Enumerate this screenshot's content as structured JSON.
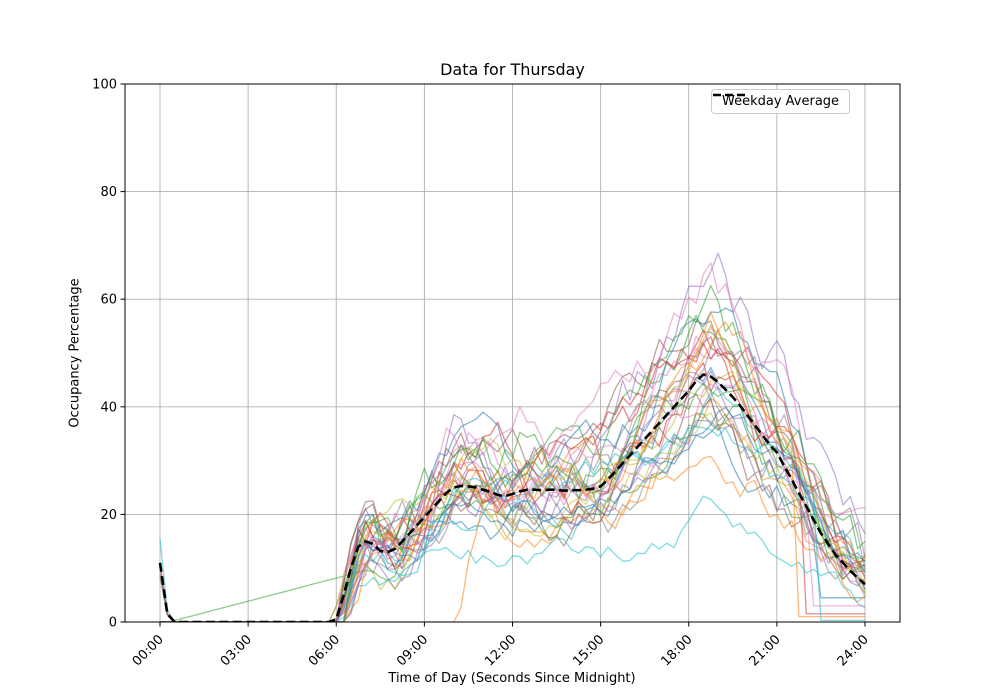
{
  "chart_data": {
    "type": "line",
    "title": "Data for Thursday",
    "xlabel": "Time of Day (Seconds Since Midnight)",
    "ylabel": "Occupancy Percentage",
    "ylim": [
      0,
      100
    ],
    "xlim_hours": [
      0,
      24
    ],
    "grid": true,
    "x_tick_hours": [
      0,
      3,
      6,
      9,
      12,
      15,
      18,
      21,
      24
    ],
    "x_tick_labels": [
      "00:00",
      "03:00",
      "06:00",
      "09:00",
      "12:00",
      "15:00",
      "18:00",
      "21:00",
      "24:00"
    ],
    "y_ticks": [
      0,
      20,
      40,
      60,
      80,
      100
    ],
    "legend": {
      "label": "Weekday Average",
      "position": "upper right"
    },
    "style": {
      "grid_color": "#b0b0b0",
      "spine_color": "#000000",
      "tick_font_px": 13,
      "average_color": "#000000",
      "average_width": 2.6,
      "average_dash": "9 4.4",
      "line_width": 1.3,
      "line_opacity": 0.55
    },
    "average": {
      "name": "Weekday Average",
      "x_start_hour": 0,
      "x_step_hours": 0.25,
      "values": [
        11,
        1.5,
        0,
        0,
        0,
        0,
        0,
        0,
        0,
        0,
        0,
        0,
        0,
        0,
        0,
        0,
        0,
        0,
        0,
        0,
        0,
        0,
        0,
        0,
        0.5,
        5,
        10,
        14,
        15,
        14.5,
        13.2,
        13,
        13.6,
        15,
        16.5,
        18,
        19.5,
        21,
        22.5,
        24,
        25,
        25.3,
        25.2,
        25,
        24.6,
        24.2,
        23.6,
        23.4,
        23.8,
        24.3,
        24.6,
        24.6,
        24.5,
        24.6,
        24.6,
        24.4,
        24.5,
        24.5,
        24.6,
        24.8,
        25.2,
        26.5,
        28,
        29.5,
        31,
        32.5,
        34,
        35.5,
        37,
        38.5,
        40,
        41.5,
        43,
        44.8,
        46,
        45.6,
        44.6,
        43.2,
        41.8,
        40.2,
        38.4,
        36.6,
        34.8,
        33,
        31.5,
        29,
        26.5,
        24,
        21.5,
        19,
        16.5,
        14.5,
        12.5,
        11,
        9.5,
        8.2,
        7
      ]
    },
    "individual_series": [
      {
        "color": "#1f77b4",
        "scale": 1.05,
        "noise": 3.0,
        "seed": 11
      },
      {
        "color": "#ff7f0e",
        "scale": 0.95,
        "noise": 3.5,
        "seed": 12
      },
      {
        "color": "#2ca02c",
        "scale": 0.95,
        "noise": 3.0,
        "seed": 13,
        "ramp": true
      },
      {
        "color": "#d62728",
        "scale": 1.3,
        "noise": 4.5,
        "seed": 14
      },
      {
        "color": "#9467bd",
        "scale": 1.42,
        "noise": 5.0,
        "seed": 15
      },
      {
        "color": "#8c564b",
        "scale": 1.28,
        "noise": 4.0,
        "seed": 16
      },
      {
        "color": "#e377c2",
        "scale": 1.1,
        "noise": 3.5,
        "seed": 17,
        "spike": 11
      },
      {
        "color": "#7f7f7f",
        "scale": 0.95,
        "noise": 4.5,
        "seed": 18,
        "spike": 9
      },
      {
        "color": "#bcbd22",
        "scale": 1.0,
        "noise": 3.0,
        "seed": 19
      },
      {
        "color": "#17becf",
        "scale": 0.9,
        "noise": 3.0,
        "seed": 20,
        "spike": 15.5
      },
      {
        "color": "#1f77b4",
        "scale": 0.8,
        "noise": 3.0,
        "seed": 21,
        "end_drop": 22.5,
        "end_val": 4.5
      },
      {
        "color": "#ff7f0e",
        "scale": 0.85,
        "noise": 3.5,
        "seed": 22,
        "start": 10
      },
      {
        "color": "#2ca02c",
        "scale": 1.15,
        "noise": 3.5,
        "seed": 23
      },
      {
        "color": "#d62728",
        "scale": 0.9,
        "noise": 4.0,
        "seed": 24,
        "end_drop": 21.9,
        "end_val": 1.5
      },
      {
        "color": "#9467bd",
        "scale": 1.0,
        "noise": 3.0,
        "seed": 25
      },
      {
        "color": "#8c564b",
        "scale": 0.85,
        "noise": 4.0,
        "seed": 26
      },
      {
        "color": "#e377c2",
        "scale": 1.25,
        "noise": 4.0,
        "seed": 27
      },
      {
        "color": "#7f7f7f",
        "scale": 1.1,
        "noise": 4.5,
        "seed": 28
      },
      {
        "color": "#bcbd22",
        "scale": 0.9,
        "noise": 3.0,
        "seed": 29
      },
      {
        "color": "#17becf",
        "scale": 0.45,
        "noise": 2.0,
        "seed": 30
      },
      {
        "color": "#1f77b4",
        "scale": 1.2,
        "noise": 3.5,
        "seed": 31
      },
      {
        "color": "#ff7f0e",
        "scale": 1.05,
        "noise": 4.0,
        "seed": 32,
        "end_drop": 21.7,
        "end_val": 1
      },
      {
        "color": "#2ca02c",
        "scale": 1.0,
        "noise": 3.0,
        "seed": 33
      },
      {
        "color": "#d62728",
        "scale": 1.15,
        "noise": 3.5,
        "seed": 34,
        "spike": 10.5
      },
      {
        "color": "#9467bd",
        "scale": 0.9,
        "noise": 3.0,
        "seed": 35
      },
      {
        "color": "#8c564b",
        "scale": 1.05,
        "noise": 3.5,
        "seed": 36,
        "spike": 8.5
      },
      {
        "color": "#e377c2",
        "scale": 0.95,
        "noise": 3.0,
        "seed": 37,
        "end_drop": 22.2,
        "end_val": 3
      },
      {
        "color": "#7f7f7f",
        "scale": 0.75,
        "noise": 3.5,
        "seed": 38
      },
      {
        "color": "#bcbd22",
        "scale": 1.1,
        "noise": 3.5,
        "seed": 39
      },
      {
        "color": "#17becf",
        "scale": 0.95,
        "noise": 3.0,
        "seed": 40,
        "end_drop": 22.4,
        "end_val": 0.3
      },
      {
        "color": "#1f77b4",
        "scale": 0.9,
        "noise": 2.5,
        "seed": 41
      },
      {
        "color": "#ff7f0e",
        "scale": 1.2,
        "noise": 3.0,
        "seed": 42
      },
      {
        "color": "#e377c2",
        "scale": 1.35,
        "noise": 4.0,
        "seed": 43
      },
      {
        "color": "#2ca02c",
        "scale": 1.25,
        "noise": 4.5,
        "seed": 44
      }
    ]
  }
}
